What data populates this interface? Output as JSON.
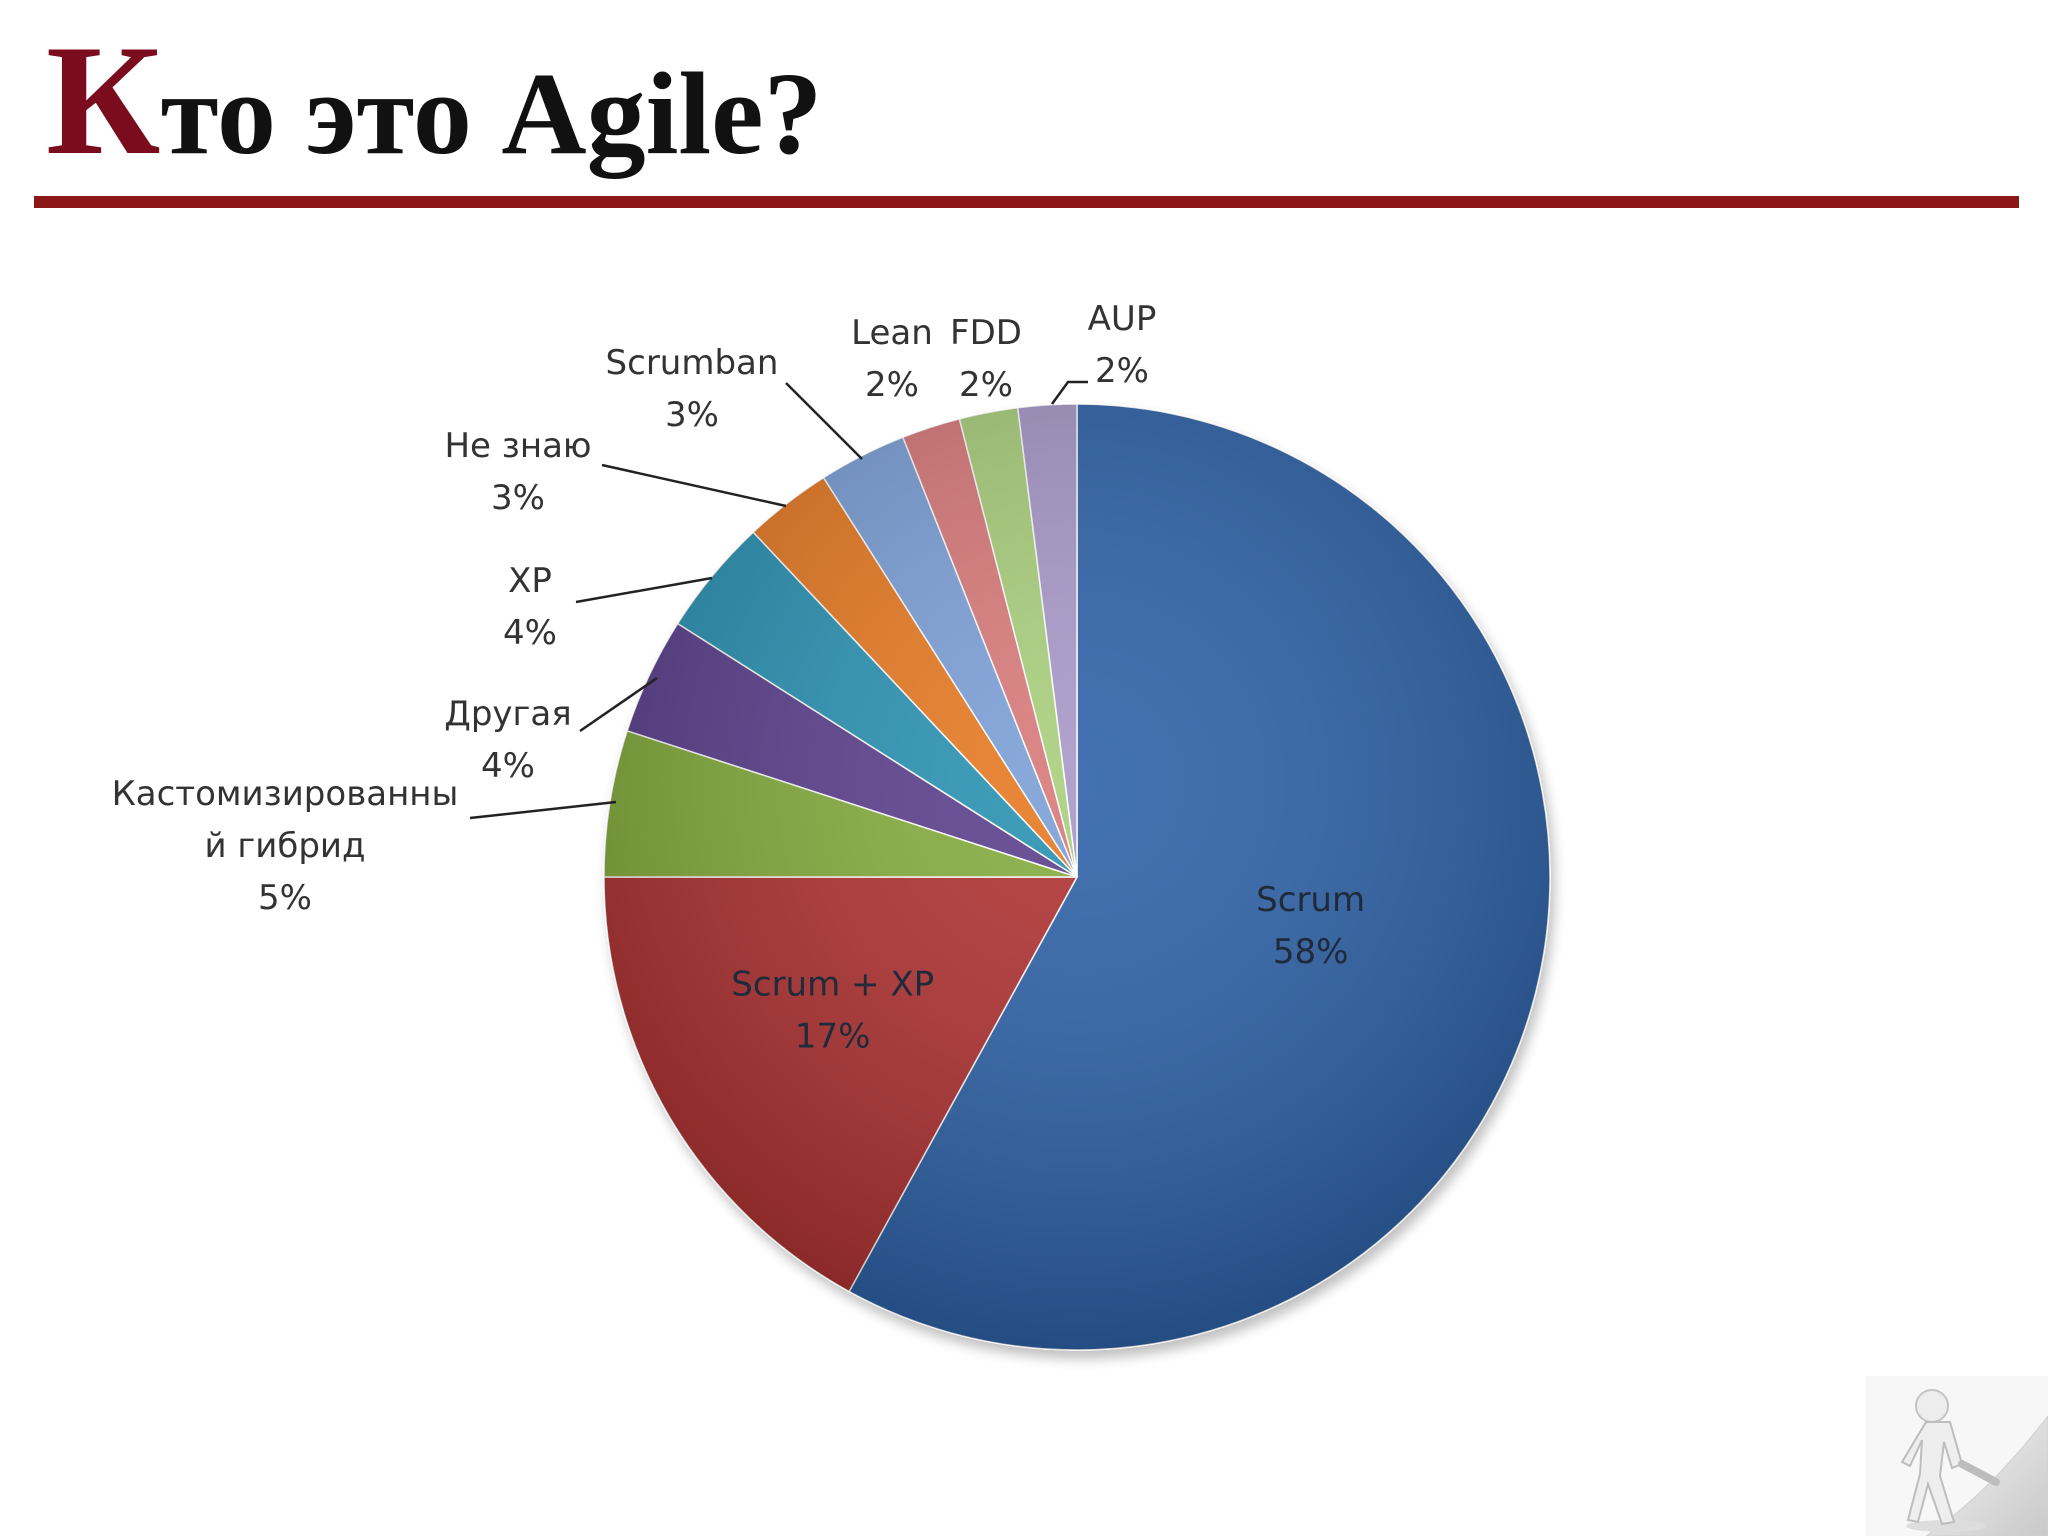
{
  "slide": {
    "title_initial": "К",
    "title_rest": "то это Agile?"
  },
  "chart_data": {
    "type": "pie",
    "title": "",
    "start_angle_deg": 0,
    "direction": "clockwise",
    "slices": [
      {
        "label": "Scrum",
        "label_lines": [
          "Scrum"
        ],
        "value": 58,
        "value_label": "58%",
        "color": "#2e62a8",
        "label_placement": "inside"
      },
      {
        "label": "Scrum + XP",
        "label_lines": [
          "Scrum + XP"
        ],
        "value": 17,
        "value_label": "17%",
        "color": "#b03031",
        "label_placement": "inside"
      },
      {
        "label": "Кастомизированный гибрид",
        "label_lines": [
          "Кастомизированны",
          "й гибрид"
        ],
        "value": 5,
        "value_label": "5%",
        "color": "#85ad3e",
        "label_placement": "outside"
      },
      {
        "label": "Другая",
        "label_lines": [
          "Другая"
        ],
        "value": 4,
        "value_label": "4%",
        "color": "#5c3f8e",
        "label_placement": "outside"
      },
      {
        "label": "XP",
        "label_lines": [
          "XP"
        ],
        "value": 4,
        "value_label": "4%",
        "color": "#2a93b4",
        "label_placement": "outside"
      },
      {
        "label": "Не знаю",
        "label_lines": [
          "Не знаю"
        ],
        "value": 3,
        "value_label": "3%",
        "color": "#e87a24",
        "label_placement": "outside"
      },
      {
        "label": "Scrumban",
        "label_lines": [
          "Scrumban"
        ],
        "value": 3,
        "value_label": "3%",
        "color": "#7ba0d8",
        "label_placement": "outside"
      },
      {
        "label": "Lean",
        "label_lines": [
          "Lean"
        ],
        "value": 2,
        "value_label": "2%",
        "color": "#d97a7a",
        "label_placement": "outside"
      },
      {
        "label": "FDD",
        "label_lines": [
          "FDD"
        ],
        "value": 2,
        "value_label": "2%",
        "color": "#a9cf7c",
        "label_placement": "outside"
      },
      {
        "label": "AUP",
        "label_lines": [
          "AUP"
        ],
        "value": 2,
        "value_label": "2%",
        "color": "#a898c8",
        "label_placement": "outside"
      }
    ]
  },
  "decor": {
    "corner_image": "person-pulling-page-corner-icon"
  }
}
